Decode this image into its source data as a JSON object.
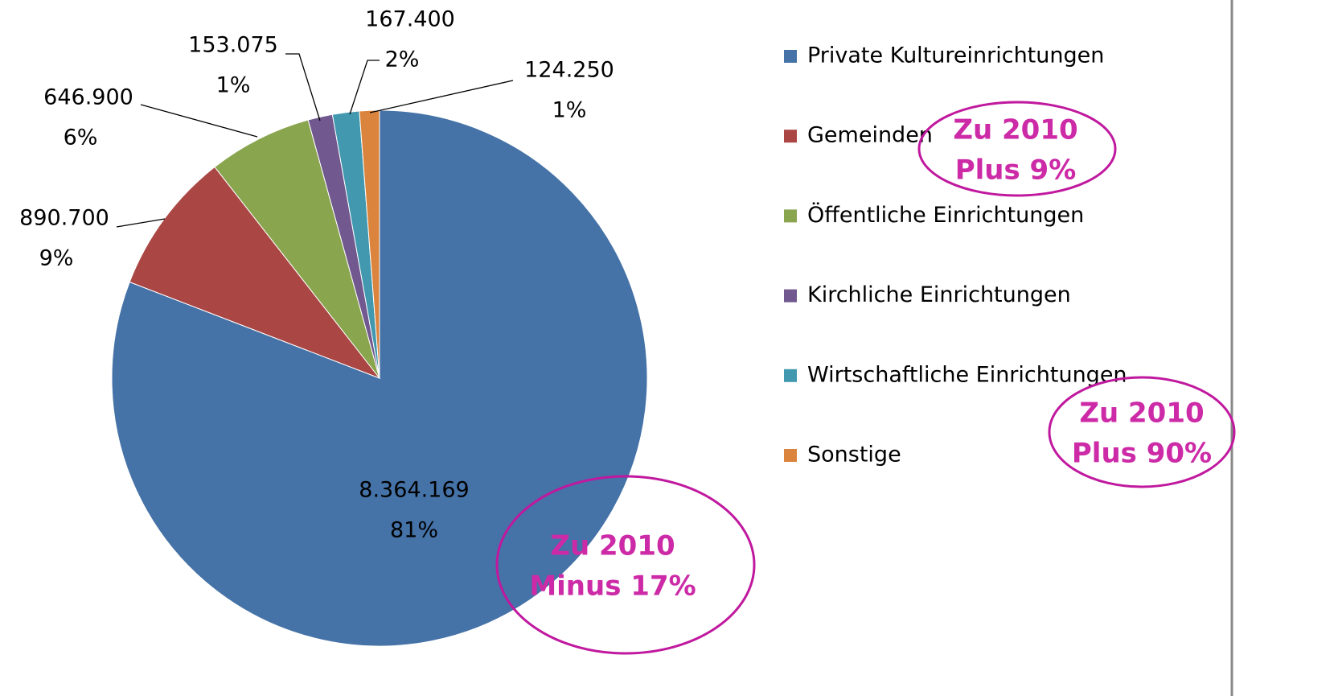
{
  "chart_data": {
    "type": "pie",
    "categories": [
      "Private Kultureinrichtungen",
      "Gemeinden",
      "Öffentliche Einrichtungen",
      "Kirchliche Einrichtungen",
      "Wirtschaftliche Einrichtungen",
      "Sonstige"
    ],
    "values": [
      8364169,
      890700,
      646900,
      153075,
      167400,
      124250
    ],
    "value_labels": [
      "8.364.169",
      "890.700",
      "646.900",
      "153.075",
      "167.400",
      "124.250"
    ],
    "percentage_labels": [
      "81%",
      "9%",
      "6%",
      "1%",
      "2%",
      "1%"
    ],
    "colors": [
      "#4572a7",
      "#aa4643",
      "#89a54e",
      "#71588f",
      "#4198af",
      "#db843d"
    ],
    "legend": "right",
    "annotations": [
      {
        "lines": [
          "Zu 2010",
          "Plus 9%"
        ]
      },
      {
        "lines": [
          "Zu 2010",
          "Plus 90%"
        ]
      },
      {
        "lines": [
          "Zu 2010",
          "Minus 17%"
        ]
      }
    ]
  }
}
